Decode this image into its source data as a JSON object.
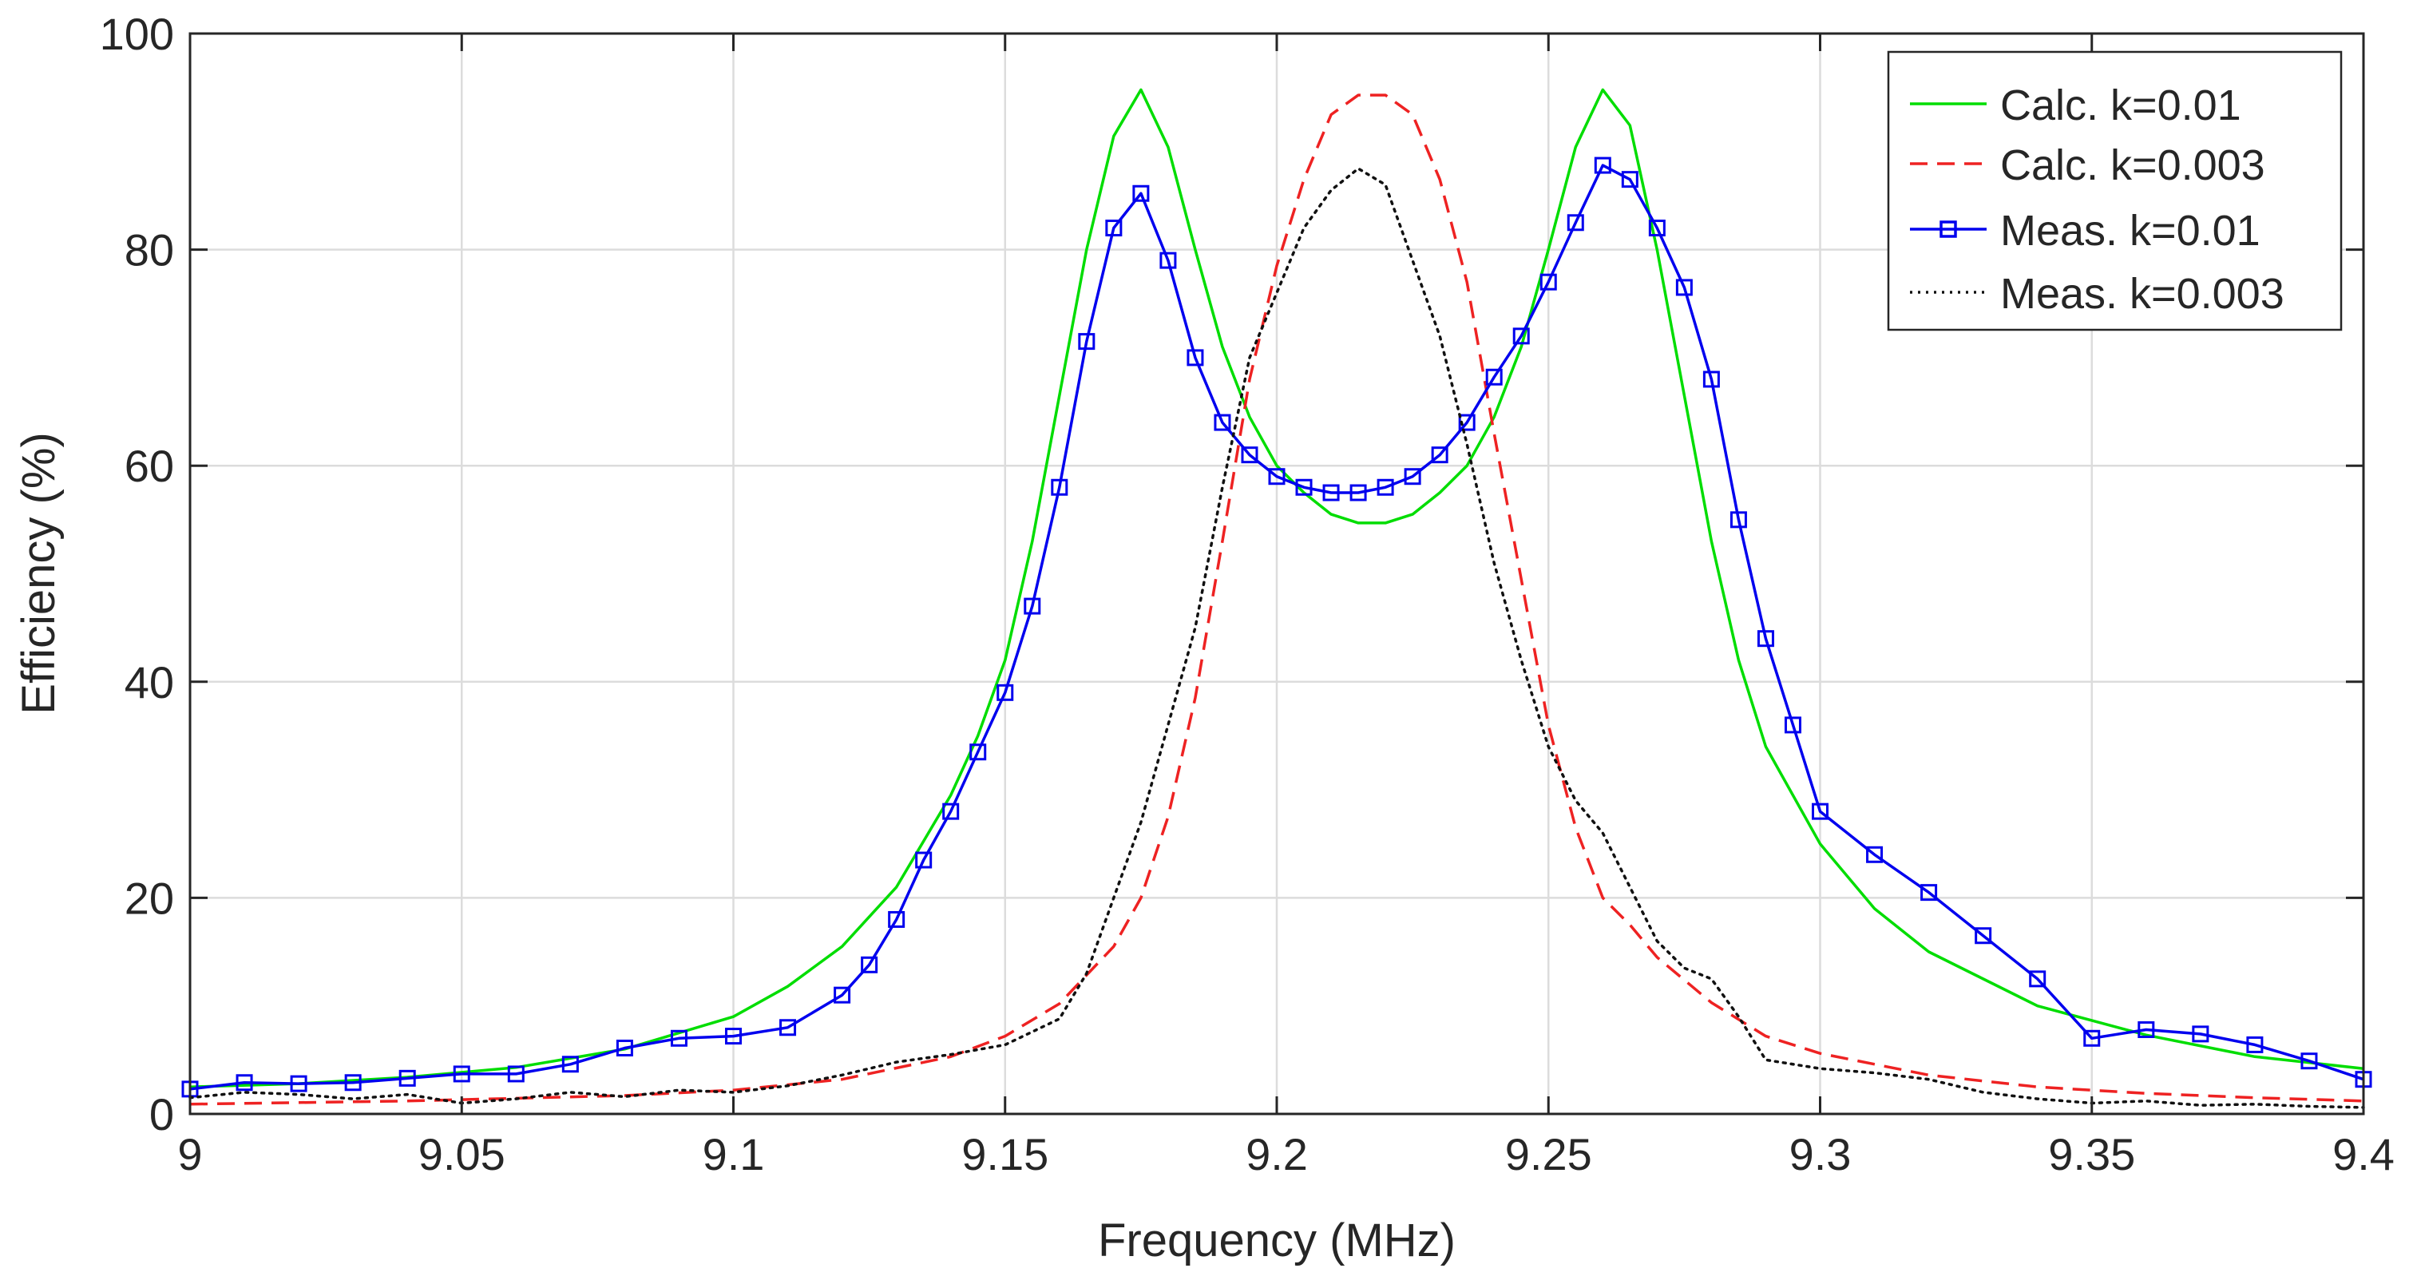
{
  "chart_data": {
    "type": "line",
    "title": "",
    "xlabel": "Frequency (MHz)",
    "ylabel": "Efficiency (%)",
    "xlim": [
      9.0,
      9.4
    ],
    "ylim": [
      0,
      100
    ],
    "grid": true,
    "xticks": [
      9.0,
      9.05,
      9.1,
      9.15,
      9.2,
      9.25,
      9.3,
      9.35,
      9.4
    ],
    "xtick_labels": [
      "9",
      "9.05",
      "9.1",
      "9.15",
      "9.2",
      "9.25",
      "9.3",
      "9.35",
      "9.4"
    ],
    "yticks": [
      0,
      20,
      40,
      60,
      80,
      100
    ],
    "ytick_labels": [
      "0",
      "20",
      "40",
      "60",
      "80",
      "100"
    ],
    "legend_position": "top-right",
    "series": [
      {
        "name": "Calc. k=0.01",
        "color": "#00dd00",
        "style": "solid",
        "marker": "none",
        "x": [
          9.0,
          9.02,
          9.04,
          9.06,
          9.08,
          9.1,
          9.11,
          9.12,
          9.13,
          9.14,
          9.145,
          9.15,
          9.155,
          9.16,
          9.165,
          9.17,
          9.175,
          9.18,
          9.185,
          9.19,
          9.195,
          9.2,
          9.205,
          9.21,
          9.215,
          9.22,
          9.225,
          9.23,
          9.235,
          9.24,
          9.245,
          9.25,
          9.255,
          9.26,
          9.265,
          9.27,
          9.275,
          9.28,
          9.285,
          9.29,
          9.3,
          9.31,
          9.32,
          9.34,
          9.36,
          9.38,
          9.4
        ],
        "y": [
          2.5,
          2.8,
          3.4,
          4.3,
          6.0,
          9.0,
          11.8,
          15.5,
          21.0,
          29.5,
          35.0,
          42.0,
          53.0,
          66.5,
          80.0,
          90.5,
          94.8,
          89.5,
          80.0,
          71.0,
          64.5,
          60.0,
          57.5,
          55.5,
          54.7,
          54.7,
          55.5,
          57.5,
          60.0,
          64.5,
          71.0,
          80.0,
          89.5,
          94.8,
          91.5,
          80.0,
          66.5,
          53.0,
          42.0,
          34.0,
          25.0,
          19.0,
          15.0,
          10.0,
          7.3,
          5.3,
          4.2
        ]
      },
      {
        "name": "Calc. k=0.003",
        "color": "#ee2222",
        "style": "dashed",
        "marker": "none",
        "x": [
          9.0,
          9.04,
          9.08,
          9.1,
          9.12,
          9.14,
          9.15,
          9.16,
          9.17,
          9.175,
          9.18,
          9.185,
          9.19,
          9.195,
          9.2,
          9.205,
          9.21,
          9.215,
          9.22,
          9.225,
          9.23,
          9.235,
          9.24,
          9.245,
          9.25,
          9.255,
          9.26,
          9.265,
          9.27,
          9.28,
          9.29,
          9.3,
          9.32,
          9.34,
          9.36,
          9.38,
          9.4
        ],
        "y": [
          0.9,
          1.2,
          1.7,
          2.2,
          3.2,
          5.3,
          7.2,
          10.2,
          15.5,
          20.0,
          27.5,
          38.5,
          53.0,
          68.0,
          78.5,
          86.5,
          92.5,
          94.3,
          94.3,
          92.5,
          86.5,
          77.0,
          63.0,
          49.5,
          36.0,
          26.5,
          20.0,
          17.5,
          14.5,
          10.3,
          7.2,
          5.6,
          3.6,
          2.5,
          1.9,
          1.5,
          1.2
        ]
      },
      {
        "name": "Meas. k=0.01",
        "color": "#0000ee",
        "style": "solid",
        "marker": "square",
        "x": [
          9.0,
          9.01,
          9.02,
          9.03,
          9.04,
          9.05,
          9.06,
          9.07,
          9.08,
          9.09,
          9.1,
          9.11,
          9.12,
          9.125,
          9.13,
          9.135,
          9.14,
          9.145,
          9.15,
          9.155,
          9.16,
          9.165,
          9.17,
          9.175,
          9.18,
          9.185,
          9.19,
          9.195,
          9.2,
          9.205,
          9.21,
          9.215,
          9.22,
          9.225,
          9.23,
          9.235,
          9.24,
          9.245,
          9.25,
          9.255,
          9.26,
          9.265,
          9.27,
          9.275,
          9.28,
          9.285,
          9.29,
          9.295,
          9.3,
          9.31,
          9.32,
          9.33,
          9.34,
          9.35,
          9.36,
          9.37,
          9.38,
          9.39,
          9.4
        ],
        "y": [
          2.3,
          2.9,
          2.8,
          2.9,
          3.3,
          3.7,
          3.7,
          4.6,
          6.1,
          7.0,
          7.2,
          8.0,
          11.0,
          13.8,
          18.0,
          23.5,
          28.0,
          33.5,
          39.0,
          47.0,
          58.0,
          71.5,
          82.0,
          85.2,
          79.0,
          70.0,
          64.0,
          61.0,
          59.0,
          58.0,
          57.5,
          57.5,
          58.0,
          59.0,
          61.0,
          64.0,
          68.2,
          72.0,
          77.0,
          82.5,
          87.8,
          86.5,
          82.0,
          76.5,
          68.0,
          55.0,
          44.0,
          36.0,
          28.0,
          24.0,
          20.5,
          16.5,
          12.5,
          7.0,
          7.8,
          7.4,
          6.4,
          4.9,
          3.2
        ]
      },
      {
        "name": "Meas. k=0.003",
        "color": "#111111",
        "style": "dotted",
        "marker": "none",
        "x": [
          9.0,
          9.01,
          9.02,
          9.03,
          9.04,
          9.05,
          9.06,
          9.07,
          9.08,
          9.09,
          9.1,
          9.11,
          9.12,
          9.13,
          9.14,
          9.15,
          9.16,
          9.165,
          9.17,
          9.175,
          9.18,
          9.185,
          9.19,
          9.195,
          9.2,
          9.205,
          9.21,
          9.215,
          9.22,
          9.225,
          9.23,
          9.235,
          9.24,
          9.245,
          9.25,
          9.255,
          9.26,
          9.265,
          9.27,
          9.275,
          9.28,
          9.285,
          9.29,
          9.3,
          9.31,
          9.32,
          9.33,
          9.34,
          9.35,
          9.36,
          9.37,
          9.38,
          9.39,
          9.4
        ],
        "y": [
          1.5,
          2.0,
          1.8,
          1.4,
          1.8,
          1.0,
          1.4,
          2.0,
          1.6,
          2.2,
          2.0,
          2.6,
          3.6,
          4.8,
          5.5,
          6.4,
          8.8,
          13.0,
          20.0,
          27.0,
          36.0,
          45.0,
          58.0,
          70.0,
          76.0,
          82.0,
          85.5,
          87.5,
          86.0,
          79.0,
          72.0,
          62.0,
          51.0,
          42.0,
          34.0,
          29.0,
          26.0,
          21.0,
          16.0,
          13.5,
          12.5,
          9.0,
          5.0,
          4.2,
          3.8,
          3.2,
          2.0,
          1.4,
          1.0,
          1.2,
          0.8,
          0.9,
          0.7,
          0.6
        ]
      }
    ]
  }
}
